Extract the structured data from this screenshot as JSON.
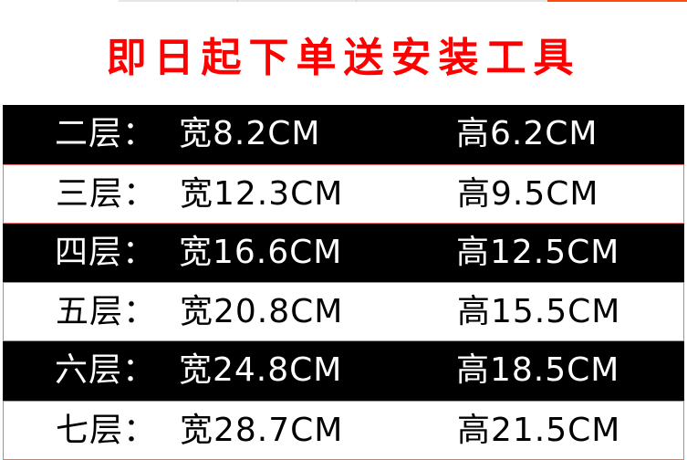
{
  "headline": "即日起下单送安装工具",
  "colors": {
    "headline": "#ff0000",
    "dark_row": "#000000",
    "light_row_border": "#f07070",
    "top_accent": "#ff4a10"
  },
  "rows": [
    {
      "layer": "二层：",
      "width": "宽8.2CM",
      "height": "高6.2CM"
    },
    {
      "layer": "三层：",
      "width": "宽12.3CM",
      "height": "高9.5CM"
    },
    {
      "layer": "四层：",
      "width": "宽16.6CM",
      "height": "高12.5CM"
    },
    {
      "layer": "五层：",
      "width": "宽20.8CM",
      "height": "高15.5CM"
    },
    {
      "layer": "六层：",
      "width": "宽24.8CM",
      "height": "高18.5CM"
    },
    {
      "layer": "七层：",
      "width": "宽28.7CM",
      "height": "高21.5CM"
    }
  ]
}
